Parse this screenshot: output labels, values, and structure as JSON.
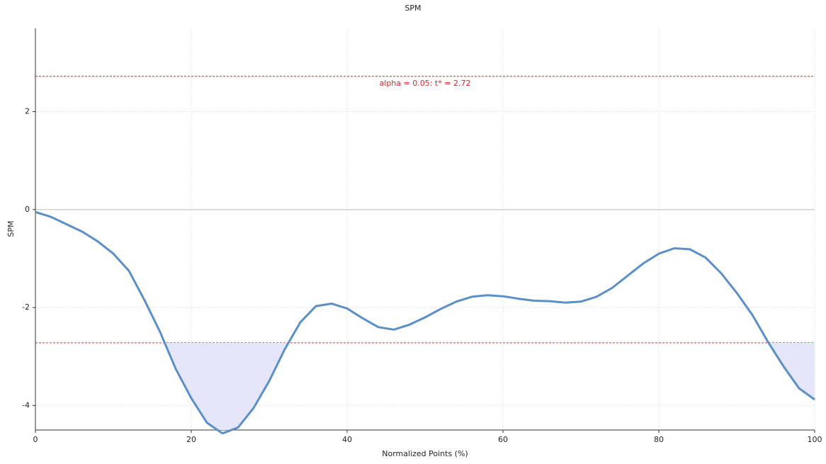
{
  "chart_data": {
    "type": "line",
    "title": "SPM",
    "x_label": "Normalized Points (%)",
    "y_label": "SPM",
    "annotation": "alpha = 0.05: t* = 2.72",
    "threshold": 2.72,
    "threshold_color": "#d62728",
    "fill_color": "#e6e6fa",
    "x": [
      0,
      2,
      4,
      6,
      8,
      10,
      12,
      14,
      16,
      18,
      20,
      22,
      24,
      26,
      28,
      30,
      32,
      34,
      36,
      38,
      40,
      42,
      44,
      46,
      48,
      50,
      52,
      54,
      56,
      58,
      60,
      62,
      64,
      66,
      68,
      70,
      72,
      74,
      76,
      78,
      80,
      82,
      84,
      86,
      88,
      90,
      92,
      94,
      96,
      98,
      100
    ],
    "series": [
      {
        "name": "SPM",
        "color": "#5b8fc7",
        "values": [
          -0.05,
          -0.15,
          -0.3,
          -0.45,
          -0.65,
          -0.9,
          -1.25,
          -1.85,
          -2.5,
          -3.25,
          -3.85,
          -4.35,
          -4.57,
          -4.45,
          -4.05,
          -3.5,
          -2.85,
          -2.3,
          -1.97,
          -1.92,
          -2.02,
          -2.22,
          -2.4,
          -2.45,
          -2.35,
          -2.2,
          -2.03,
          -1.88,
          -1.78,
          -1.75,
          -1.77,
          -1.82,
          -1.86,
          -1.87,
          -1.9,
          -1.88,
          -1.78,
          -1.6,
          -1.35,
          -1.1,
          -0.9,
          -0.79,
          -0.81,
          -0.98,
          -1.3,
          -1.7,
          -2.15,
          -2.7,
          -3.2,
          -3.65,
          -3.88
        ]
      }
    ],
    "xlim": [
      0,
      100
    ],
    "xticks": [
      0,
      20,
      40,
      60,
      80,
      100
    ],
    "ylim": [
      -4.5,
      3.7
    ],
    "yticks": [
      -4,
      -2,
      0,
      2
    ],
    "grid": true
  }
}
